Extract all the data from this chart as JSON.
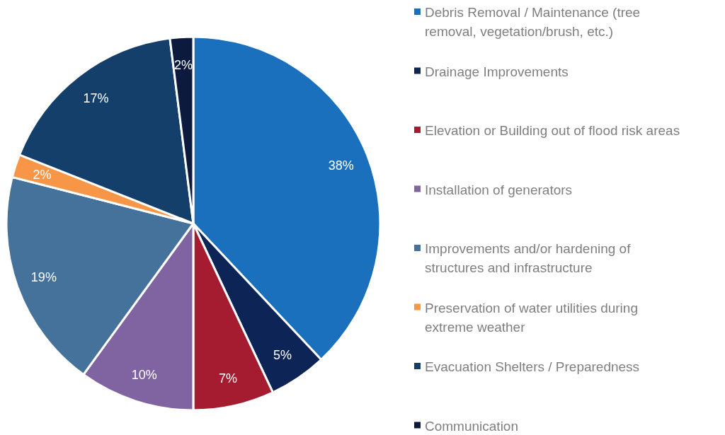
{
  "chart_data": {
    "type": "pie",
    "categories": [
      "Debris Removal / Maintenance (tree removal, vegetation/brush, etc.)",
      "Drainage Improvements",
      "Elevation or Building out of flood risk areas",
      "Installation of generators",
      "Improvements and/or hardening of structures and infrastructure",
      "Preservation of water utilities during extreme weather",
      "Evacuation Shelters / Preparedness",
      "Communication"
    ],
    "values": [
      38,
      5,
      7,
      10,
      19,
      2,
      17,
      2
    ],
    "colors": [
      "#1a70bd",
      "#0d2456",
      "#a51c30",
      "#8064a2",
      "#45729b",
      "#f79646",
      "#153f6b",
      "#0b1a3d"
    ],
    "value_labels": [
      "38%",
      "5%",
      "7%",
      "10%",
      "19%",
      "2%",
      "17%",
      "2%"
    ],
    "legend": "right"
  }
}
